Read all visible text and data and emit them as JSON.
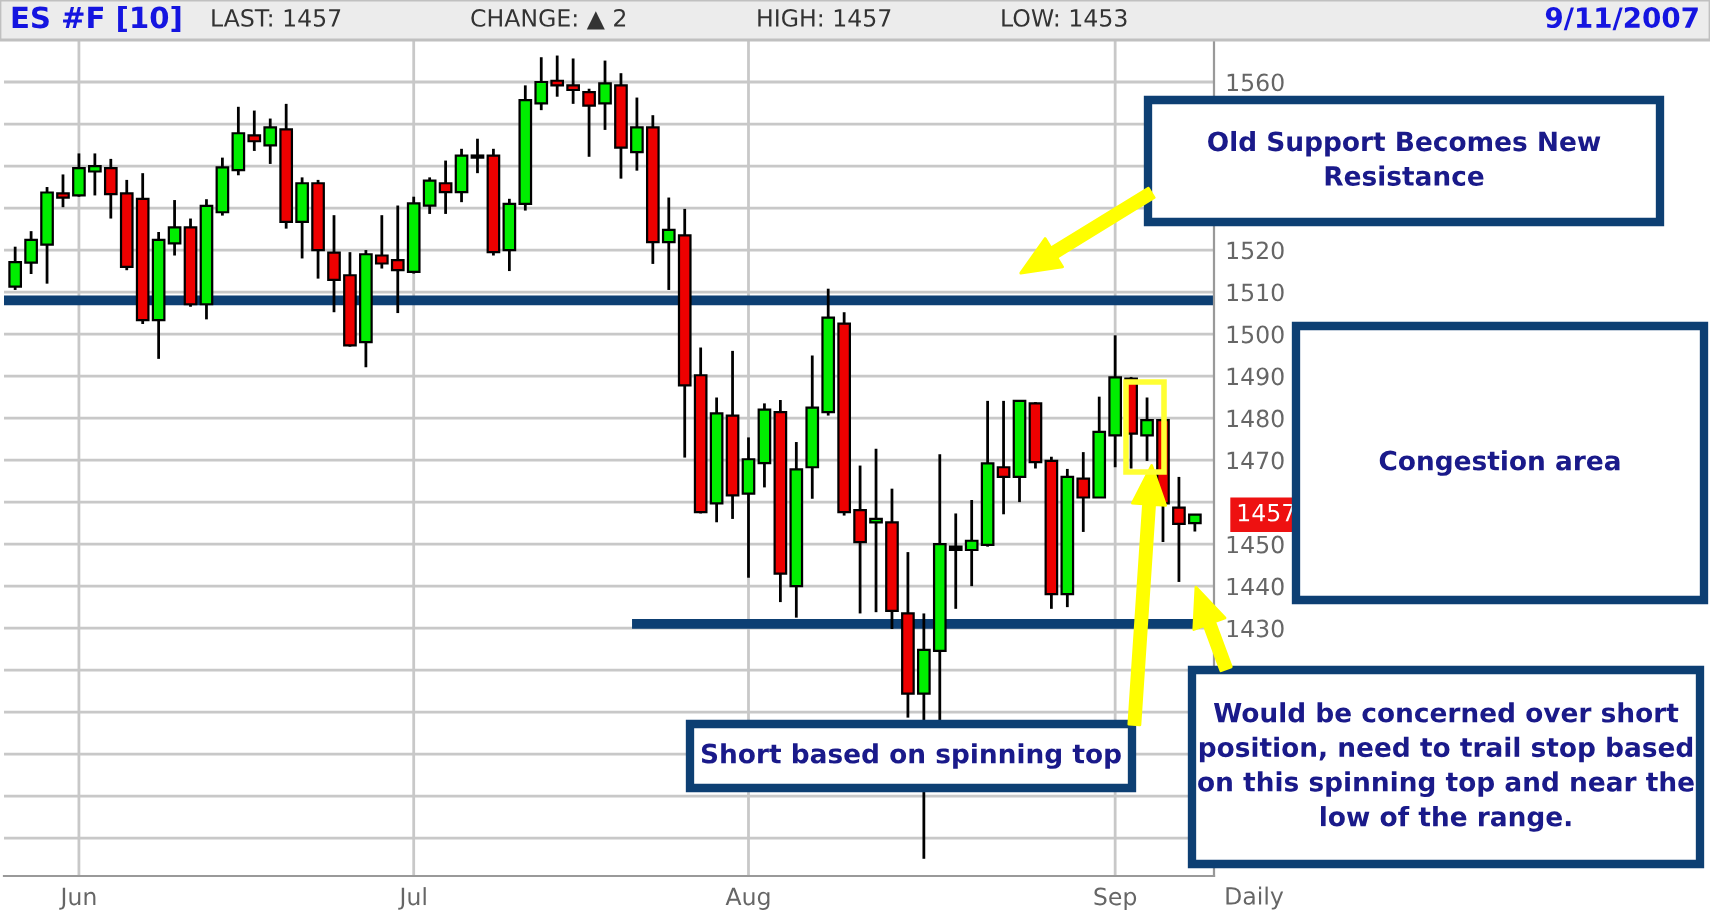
{
  "chart_data": {
    "type": "candlestick",
    "title": "ES #F [10]",
    "categories": [
      null,
      null,
      null,
      null,
      "Jun",
      null,
      null,
      null,
      null,
      null,
      null,
      null,
      null,
      null,
      null,
      null,
      null,
      null,
      null,
      null,
      null,
      null,
      null,
      null,
      null,
      "Jul",
      null,
      null,
      null,
      null,
      null,
      null,
      null,
      null,
      null,
      null,
      null,
      null,
      null,
      null,
      null,
      null,
      null,
      null,
      null,
      null,
      "Aug",
      null,
      null,
      null,
      null,
      null,
      null,
      null,
      null,
      null,
      null,
      null,
      null,
      null,
      null,
      null,
      null,
      null,
      null,
      null,
      null,
      null,
      null,
      "Sep",
      null,
      null,
      null,
      null,
      null
    ],
    "ohlc": [
      [
        1511.3,
        1520.8,
        1510.5,
        1517.1
      ],
      [
        1517.0,
        1524.5,
        1514.3,
        1522.4
      ],
      [
        1521.3,
        1535.0,
        1512.0,
        1533.7
      ],
      [
        1533.5,
        1538.0,
        1530.2,
        1532.5
      ],
      [
        1533.0,
        1543.0,
        1532.7,
        1539.5
      ],
      [
        1538.7,
        1543.0,
        1533.0,
        1540.0
      ],
      [
        1539.5,
        1541.7,
        1527.5,
        1533.3
      ],
      [
        1533.5,
        1536.7,
        1515.2,
        1516.0
      ],
      [
        1532.2,
        1538.3,
        1502.4,
        1503.3
      ],
      [
        1503.3,
        1524.3,
        1494.1,
        1522.4
      ],
      [
        1521.6,
        1531.9,
        1518.7,
        1525.4
      ],
      [
        1525.4,
        1527.5,
        1506.5,
        1507.1
      ],
      [
        1507.1,
        1532.1,
        1503.5,
        1530.5
      ],
      [
        1529.0,
        1542.0,
        1528.2,
        1539.7
      ],
      [
        1539.0,
        1554.1,
        1537.8,
        1547.8
      ],
      [
        1547.3,
        1553.2,
        1543.6,
        1545.9
      ],
      [
        1544.9,
        1551.3,
        1540.5,
        1549.2
      ],
      [
        1548.7,
        1554.8,
        1525.1,
        1526.7
      ],
      [
        1526.7,
        1537.3,
        1518.0,
        1535.9
      ],
      [
        1535.9,
        1536.7,
        1513.2,
        1520.0
      ],
      [
        1519.4,
        1528.3,
        1505.2,
        1512.9
      ],
      [
        1514.0,
        1519.5,
        1497.0,
        1497.3
      ],
      [
        1498.1,
        1520.0,
        1492.1,
        1519.0
      ],
      [
        1518.7,
        1528.3,
        1515.6,
        1516.8
      ],
      [
        1517.6,
        1530.6,
        1505.0,
        1515.2
      ],
      [
        1514.8,
        1532.7,
        1514.4,
        1531.1
      ],
      [
        1530.6,
        1537.3,
        1528.6,
        1536.5
      ],
      [
        1535.9,
        1541.3,
        1528.6,
        1533.8
      ],
      [
        1533.8,
        1544.1,
        1531.4,
        1542.5
      ],
      [
        1542.5,
        1546.5,
        1538.3,
        1542.0
      ],
      [
        1542.5,
        1544.1,
        1518.7,
        1519.5
      ],
      [
        1520.0,
        1532.2,
        1515.0,
        1531.0
      ],
      [
        1531.0,
        1559.2,
        1529.4,
        1555.7
      ],
      [
        1554.9,
        1565.9,
        1553.3,
        1560.0
      ],
      [
        1560.3,
        1566.3,
        1556.5,
        1559.2
      ],
      [
        1559.2,
        1565.6,
        1554.8,
        1558.1
      ],
      [
        1557.6,
        1558.4,
        1542.2,
        1554.4
      ],
      [
        1554.9,
        1565.1,
        1548.6,
        1559.7
      ],
      [
        1559.2,
        1562.1,
        1537.0,
        1544.4
      ],
      [
        1543.3,
        1556.3,
        1538.9,
        1549.2
      ],
      [
        1549.2,
        1552.1,
        1516.7,
        1521.9
      ],
      [
        1521.9,
        1532.5,
        1510.5,
        1524.8
      ],
      [
        1523.5,
        1529.8,
        1470.6,
        1487.8
      ],
      [
        1490.2,
        1496.8,
        1457.3,
        1457.6
      ],
      [
        1459.7,
        1484.9,
        1455.2,
        1481.1
      ],
      [
        1480.6,
        1496.0,
        1456.0,
        1461.6
      ],
      [
        1462.0,
        1475.4,
        1442.0,
        1470.2
      ],
      [
        1469.3,
        1483.5,
        1463.5,
        1482.0
      ],
      [
        1481.4,
        1484.3,
        1436.2,
        1443.0
      ],
      [
        1440.0,
        1474.3,
        1432.5,
        1467.8
      ],
      [
        1468.3,
        1494.9,
        1460.8,
        1482.5
      ],
      [
        1481.4,
        1510.8,
        1480.6,
        1503.9
      ],
      [
        1502.5,
        1505.2,
        1456.8,
        1457.6
      ],
      [
        1458.1,
        1468.7,
        1433.5,
        1450.5
      ],
      [
        1455.2,
        1472.7,
        1433.8,
        1456.0
      ],
      [
        1455.2,
        1463.2,
        1429.8,
        1434.1
      ],
      [
        1433.5,
        1448.1,
        1408.7,
        1414.4
      ],
      [
        1414.4,
        1433.5,
        1375.1,
        1424.8
      ],
      [
        1424.6,
        1471.4,
        1407.5,
        1450.0
      ],
      [
        1449.4,
        1457.3,
        1434.6,
        1448.6
      ],
      [
        1448.6,
        1460.5,
        1440.0,
        1450.8
      ],
      [
        1449.8,
        1484.1,
        1449.4,
        1469.2
      ],
      [
        1468.3,
        1484.1,
        1457.1,
        1466.0
      ],
      [
        1466.0,
        1484.3,
        1460.0,
        1484.1
      ],
      [
        1483.5,
        1483.8,
        1468.0,
        1469.5
      ],
      [
        1469.8,
        1470.8,
        1434.6,
        1438.1
      ],
      [
        1438.1,
        1467.9,
        1435.0,
        1466.0
      ],
      [
        1465.6,
        1471.9,
        1452.9,
        1461.1
      ],
      [
        1461.1,
        1485.1,
        1461.1,
        1476.7
      ],
      [
        1475.9,
        1499.7,
        1468.3,
        1489.7
      ],
      [
        1489.4,
        1489.8,
        1468.0,
        1476.3
      ],
      [
        1475.9,
        1484.9,
        1469.8,
        1479.5
      ],
      [
        1479.5,
        1479.8,
        1450.5,
        1459.7
      ],
      [
        1458.7,
        1466.0,
        1441.0,
        1454.8
      ],
      [
        1455.0,
        1457.0,
        1453.0,
        1457.0
      ]
    ],
    "colors": [
      "#00ee00",
      "#00ee00",
      "#00ee00",
      "#ee0000",
      "#00ee00",
      "#00ee00",
      "#ee0000",
      "#ee0000",
      "#ee0000",
      "#00ee00",
      "#00ee00",
      "#ee0000",
      "#00ee00",
      "#00ee00",
      "#00ee00",
      "#ee0000",
      "#00ee00",
      "#ee0000",
      "#00ee00",
      "#ee0000",
      "#ee0000",
      "#ee0000",
      "#00ee00",
      "#ee0000",
      "#ee0000",
      "#00ee00",
      "#00ee00",
      "#ee0000",
      "#00ee00",
      "#000000",
      "#ee0000",
      "#00ee00",
      "#00ee00",
      "#00ee00",
      "#ee0000",
      "#ee0000",
      "#ee0000",
      "#00ee00",
      "#ee0000",
      "#00ee00",
      "#ee0000",
      "#00ee00",
      "#ee0000",
      "#ee0000",
      "#00ee00",
      "#ee0000",
      "#00ee00",
      "#00ee00",
      "#ee0000",
      "#00ee00",
      "#00ee00",
      "#00ee00",
      "#ee0000",
      "#ee0000",
      "#00ee00",
      "#ee0000",
      "#ee0000",
      "#00ee00",
      "#00ee00",
      "#000000",
      "#00ee00",
      "#00ee00",
      "#ee0000",
      "#00ee00",
      "#ee0000",
      "#ee0000",
      "#00ee00",
      "#ee0000",
      "#00ee00",
      "#00ee00",
      "#ee0000",
      "#00ee00",
      "#ee0000",
      "#ee0000",
      "#00ee00"
    ],
    "series": [
      {
        "type": "line",
        "color": "#0d3f73",
        "values": [
          null,
          null,
          null,
          null,
          null,
          null,
          null,
          null,
          null,
          null,
          null,
          null,
          null,
          null,
          null,
          null,
          null,
          null,
          null,
          null,
          null,
          null,
          null,
          null,
          null,
          null,
          null,
          null,
          null,
          null,
          null,
          null,
          null,
          null,
          null,
          null,
          null,
          null,
          null,
          1431,
          1431,
          1431,
          1431,
          1431,
          1431,
          1431,
          1431,
          1431,
          1431,
          1431,
          1431,
          1431,
          1431,
          1431,
          1431,
          1431,
          1431,
          1431,
          1431,
          1431,
          1431,
          1431,
          1431,
          1431,
          1431,
          1431,
          1431,
          1431,
          1431,
          1431,
          1431,
          1431,
          1431,
          1431,
          1431
        ]
      }
    ],
    "ref_lines": [
      {
        "axis": "y",
        "value": 1508,
        "color": "#0d3f73"
      }
    ],
    "ylim": [
      1371,
      1570
    ],
    "yticks": [
      {
        "value": 1380,
        "label": null
      },
      {
        "value": 1390,
        "label": null
      },
      {
        "value": 1400,
        "label": null
      },
      {
        "value": 1410,
        "label": null
      },
      {
        "value": 1420,
        "label": null
      },
      1430,
      1440,
      1450,
      {
        "value": 1460,
        "label": null
      },
      1470,
      1480,
      1490,
      1500,
      1510,
      1520,
      {
        "value": 1530,
        "label": null
      },
      {
        "value": 1540,
        "label": null
      },
      {
        "value": 1550,
        "label": null
      },
      1560
    ],
    "grid": true,
    "annotations": [
      "LAST: 1457",
      "CHANGE: ▲ 2",
      "HIGH: 1457",
      "LOW: 1453",
      "9/11/2007",
      "Daily",
      "1457",
      "Old Support Becomes New\nResistance",
      "Congestion area",
      "Short based on spinning top",
      "Would be concerned over short\nposition, need to trail stop based\non this spinning top and near the\nlow of the range."
    ]
  }
}
